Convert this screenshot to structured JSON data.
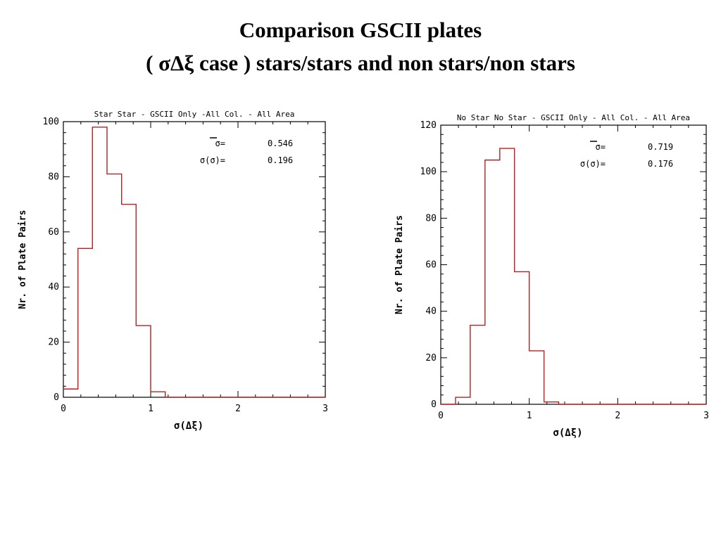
{
  "slide": {
    "title_line_1": "Comparison GSCII plates",
    "title_line_2": "( σΔξ case ) stars/stars and non stars/non stars"
  },
  "chart_data": [
    {
      "type": "histogram",
      "title": "Star Star - GSCII Only -All Col. - All Area",
      "xlabel": "σ(Δξ)",
      "ylabel": "Nr. of Plate Pairs",
      "xlim": [
        0,
        3
      ],
      "ylim": [
        0,
        100
      ],
      "xticks": [
        0,
        1,
        2,
        3
      ],
      "yticks": [
        0,
        20,
        40,
        60,
        80,
        100
      ],
      "bin_edges": [
        0,
        0.167,
        0.333,
        0.5,
        0.667,
        0.833,
        1.0,
        1.167,
        1.333,
        1.5,
        1.667,
        1.833,
        2.0,
        2.167,
        2.333,
        2.5,
        2.667,
        2.833,
        3.0
      ],
      "counts": [
        3,
        54,
        98,
        81,
        70,
        26,
        2,
        0,
        0,
        0,
        0,
        0,
        0,
        0,
        0,
        0,
        0,
        0
      ],
      "stats": {
        "mean_label": "σ=",
        "mean_value": "0.546",
        "sigma_label": "σ(σ)=",
        "sigma_value": "0.196"
      },
      "line_color": "#b22222",
      "grid": false
    },
    {
      "type": "histogram",
      "title": "No Star No Star - GSCII Only - All Col. - All Area",
      "xlabel": "σ(Δξ)",
      "ylabel": "Nr. of Plate Pairs",
      "xlim": [
        0,
        3
      ],
      "ylim": [
        0,
        120
      ],
      "xticks": [
        0,
        1,
        2,
        3
      ],
      "yticks": [
        0,
        20,
        40,
        60,
        80,
        100,
        120
      ],
      "bin_edges": [
        0,
        0.167,
        0.333,
        0.5,
        0.667,
        0.833,
        1.0,
        1.167,
        1.333,
        1.5,
        1.667,
        1.833,
        2.0,
        2.167,
        2.333,
        2.5,
        2.667,
        2.833,
        3.0
      ],
      "counts": [
        0,
        3,
        34,
        105,
        110,
        57,
        23,
        1,
        0,
        0,
        0,
        0,
        0,
        0,
        0,
        0,
        0,
        0
      ],
      "stats": {
        "mean_label": "σ=",
        "mean_value": "0.719",
        "sigma_label": "σ(σ)=",
        "sigma_value": "0.176"
      },
      "line_color": "#b22222",
      "grid": false
    }
  ]
}
